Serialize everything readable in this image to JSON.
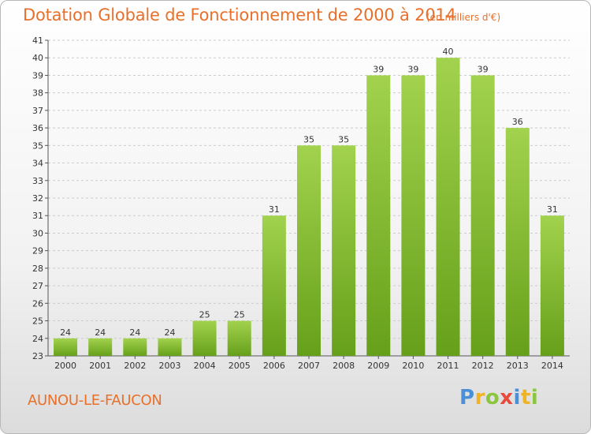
{
  "header": {
    "title": "Dotation Globale de Fonctionnement de 2000 à 2014",
    "subtitle": "(en milliers d'€)"
  },
  "footer": {
    "commune": "AUNOU-LE-FAUCON",
    "logo": [
      "P",
      "r",
      "o",
      "x",
      "i",
      "t",
      "i"
    ]
  },
  "colors": {
    "bar_top": "#a2d24e",
    "bar_bottom": "#66a01a",
    "text_accent": "#e8702a",
    "grid": "#cccccc"
  },
  "chart_data": {
    "type": "bar",
    "title": "Dotation Globale de Fonctionnement de 2000 à 2014",
    "subtitle": "(en milliers d'€)",
    "categories": [
      "2000",
      "2001",
      "2002",
      "2003",
      "2004",
      "2005",
      "2006",
      "2007",
      "2008",
      "2009",
      "2010",
      "2011",
      "2012",
      "2013",
      "2014"
    ],
    "values": [
      24,
      24,
      24,
      24,
      25,
      25,
      31,
      35,
      35,
      39,
      39,
      40,
      39,
      36,
      31
    ],
    "ylim": [
      23,
      41
    ],
    "yticks": [
      23,
      24,
      25,
      26,
      27,
      28,
      29,
      30,
      31,
      32,
      33,
      34,
      35,
      36,
      37,
      38,
      39,
      40,
      41
    ],
    "grid": true,
    "xlabel": "",
    "ylabel": ""
  }
}
